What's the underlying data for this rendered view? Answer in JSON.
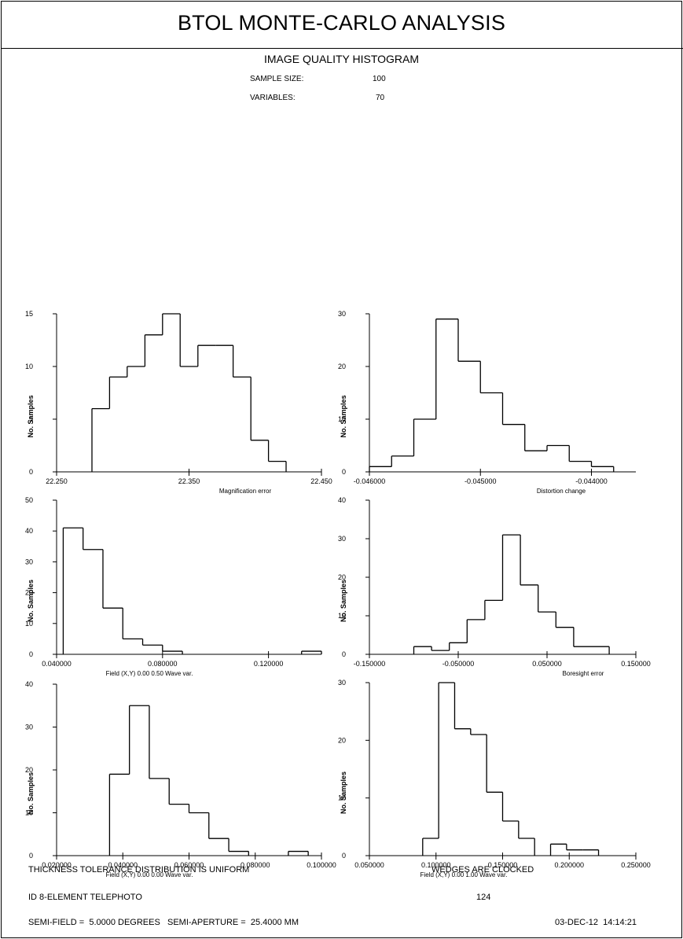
{
  "header": {
    "title": "BTOL MONTE-CARLO ANALYSIS",
    "subtitle": "IMAGE QUALITY HISTOGRAM",
    "sample_size_label": "SAMPLE SIZE:",
    "sample_size_value": "100",
    "variables_label": "VARIABLES:",
    "variables_value": "70"
  },
  "footer": {
    "left_line1": "THICKNESS TOLERANCE DISTRIBUTION IS UNIFORM",
    "right_line1": "WEDGES ARE CLOCKED",
    "left_line2": "ID 8-ELEMENT TELEPHOTO",
    "right_line2": "124",
    "left_line3": "SEMI-FIELD =  5.0000 DEGREES   SEMI-APERTURE =  25.4000 MM",
    "right_line3": "03-DEC-12  14:14:21"
  },
  "chart_data": [
    {
      "type": "bar",
      "xlabel": "Magnification error",
      "ylabel": "No. Samples",
      "xlim": [
        22.25,
        22.45
      ],
      "ylim": [
        0,
        15
      ],
      "xticks": [
        "22.250",
        "22.350",
        "22.450"
      ],
      "yticks": [
        "0",
        "5",
        "10",
        "15"
      ],
      "bin_edges": [
        22.25,
        22.2633,
        22.2767,
        22.29,
        22.3033,
        22.3167,
        22.33,
        22.3433,
        22.3567,
        22.37,
        22.3833,
        22.3967,
        22.41,
        22.4233,
        22.4367
      ],
      "values": [
        0,
        0,
        6,
        9,
        10,
        13,
        15,
        10,
        12,
        12,
        9,
        3,
        1,
        0
      ]
    },
    {
      "type": "bar",
      "xlabel": "Distortion change",
      "ylabel": "No. Samples",
      "xlim": [
        -0.046,
        -0.0436
      ],
      "ylim": [
        0,
        30
      ],
      "xticks": [
        "-0.046000",
        "-0.045000",
        "-0.044000"
      ],
      "yticks": [
        "0",
        "10",
        "20",
        "30"
      ],
      "bin_edges": [
        -0.046,
        -0.0458,
        -0.0456,
        -0.0454,
        -0.0452,
        -0.045,
        -0.0448,
        -0.0446,
        -0.0444,
        -0.0442,
        -0.044,
        -0.0438,
        -0.0436
      ],
      "values": [
        1,
        3,
        10,
        29,
        21,
        15,
        9,
        4,
        5,
        2,
        1,
        0
      ]
    },
    {
      "type": "bar",
      "xlabel": "Field (X,Y)  0.00  0.50   Wave var.",
      "ylabel": "No. Samples",
      "xlim": [
        0.04,
        0.14
      ],
      "ylim": [
        0,
        50
      ],
      "xticks": [
        "0.040000",
        "0.080000",
        "0.120000"
      ],
      "yticks": [
        "0",
        "10",
        "20",
        "30",
        "40",
        "50"
      ],
      "bin_edges": [
        0.0425,
        0.05,
        0.0575,
        0.065,
        0.0725,
        0.08,
        0.0875,
        0.095,
        0.1025,
        0.11,
        0.1175,
        0.125,
        0.1325,
        0.14
      ],
      "values": [
        41,
        34,
        15,
        5,
        3,
        1,
        0,
        0,
        0,
        0,
        0,
        0,
        1
      ]
    },
    {
      "type": "bar",
      "xlabel": "Boresight error",
      "ylabel": "No. Samples",
      "xlim": [
        -0.15,
        0.15
      ],
      "ylim": [
        0,
        40
      ],
      "xticks": [
        "-0.150000",
        "-0.050000",
        "0.050000",
        "0.150000"
      ],
      "yticks": [
        "0",
        "10",
        "20",
        "30",
        "40"
      ],
      "bin_edges": [
        -0.1,
        -0.08,
        -0.06,
        -0.04,
        -0.02,
        0.0,
        0.02,
        0.04,
        0.06,
        0.08,
        0.1,
        0.12,
        0.14
      ],
      "values": [
        2,
        1,
        3,
        9,
        14,
        31,
        18,
        11,
        7,
        2,
        2,
        0
      ]
    },
    {
      "type": "bar",
      "xlabel": "Field (X,Y)  0.00  0.00   Wave var.",
      "ylabel": "No. Samples",
      "xlim": [
        0.02,
        0.1
      ],
      "ylim": [
        0,
        40
      ],
      "xticks": [
        "0.020000",
        "0.040000",
        "0.060000",
        "0.080000",
        "0.100000"
      ],
      "yticks": [
        "0",
        "10",
        "20",
        "30",
        "40"
      ],
      "bin_edges": [
        0.036,
        0.042,
        0.048,
        0.054,
        0.06,
        0.066,
        0.072,
        0.078,
        0.084,
        0.09,
        0.096
      ],
      "values": [
        19,
        35,
        18,
        12,
        10,
        4,
        1,
        0,
        0,
        1
      ]
    },
    {
      "type": "bar",
      "xlabel": "Field (X,Y)  0.00  1.00   Wave var.",
      "ylabel": "No. Samples",
      "xlim": [
        0.05,
        0.25
      ],
      "ylim": [
        0,
        30
      ],
      "xticks": [
        "0.050000",
        "0.100000",
        "0.150000",
        "0.200000",
        "0.250000"
      ],
      "yticks": [
        "0",
        "10",
        "20",
        "30"
      ],
      "bin_edges": [
        0.09,
        0.102,
        0.114,
        0.126,
        0.138,
        0.15,
        0.162,
        0.174,
        0.186,
        0.198,
        0.21,
        0.222,
        0.234
      ],
      "values": [
        3,
        30,
        22,
        21,
        11,
        6,
        3,
        0,
        2,
        1,
        1,
        0
      ]
    }
  ]
}
